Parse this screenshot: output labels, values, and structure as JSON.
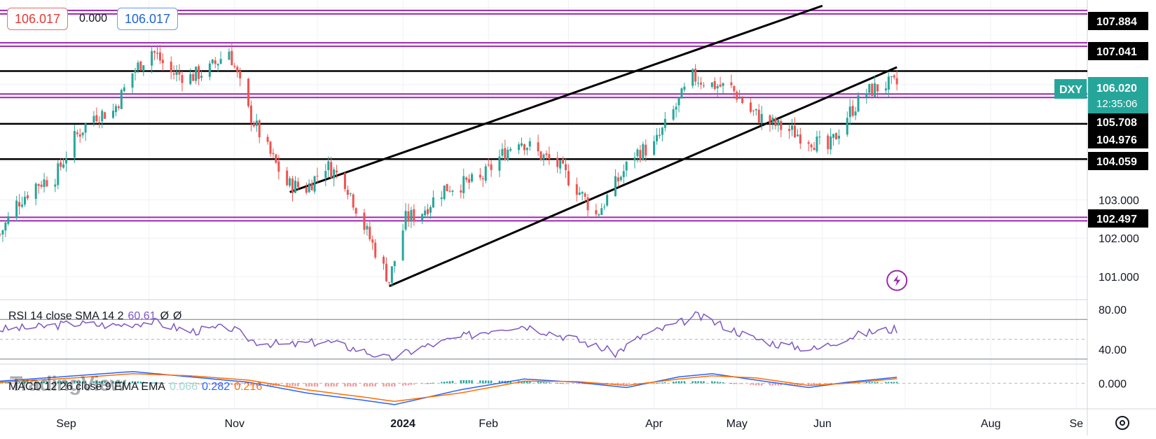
{
  "header": {
    "sell_price": "106.017",
    "spread": "0.000",
    "buy_price": "106.017"
  },
  "colors": {
    "up": "#26a69a",
    "down": "#ef5350",
    "sr_line": "#9c27b0",
    "trend_line": "#000000",
    "rsi_line": "#7e57c2",
    "macd_line": "#2962ff",
    "signal_line": "#ff6d00",
    "symbol_badge": "#26a69a"
  },
  "symbol_badge": {
    "symbol": "DXY",
    "price": "106.020",
    "countdown": "12:35:06"
  },
  "rsi": {
    "label": "RSI 14 close SMA 14 2",
    "value": "60.61",
    "extra1": "Ø",
    "extra2": "Ø",
    "axis_ticks": [
      "80.00",
      "40.00"
    ]
  },
  "macd": {
    "label": "MACD 12 26 close 9 EMA EMA",
    "histogram": "0.066",
    "macd_value": "0.282",
    "signal_value": "0.216",
    "axis_tick": "0.000"
  },
  "watermark": "TradingView",
  "time_axis": [
    "Sep",
    "Nov",
    "2024",
    "Feb",
    "Apr",
    "May",
    "Jun",
    "Aug",
    "Se"
  ],
  "price_axis": {
    "ticks": [
      "103.000",
      "102.000",
      "101.000"
    ],
    "level_labels": [
      "107.884",
      "107.041",
      "105.708",
      "104.976",
      "104.059",
      "102.497"
    ]
  },
  "chart_data": {
    "type": "candlestick",
    "instrument": "DXY",
    "timeframe": "daily",
    "x_range": [
      "2023-08-08",
      "2024-09-05"
    ],
    "ylim": [
      100.4,
      108.2
    ],
    "horizontal_levels": [
      {
        "price": 107.884,
        "style": "purple"
      },
      {
        "price": 107.041,
        "style": "purple"
      },
      {
        "price": 106.35,
        "style": "black"
      },
      {
        "price": 105.708,
        "style": "purple"
      },
      {
        "price": 104.976,
        "style": "black"
      },
      {
        "price": 104.059,
        "style": "black"
      },
      {
        "price": 102.497,
        "style": "purple"
      }
    ],
    "trend_lines": [
      {
        "from": [
          "2023-11-21",
          103.2
        ],
        "to": [
          "2024-06-01",
          108.05
        ]
      },
      {
        "from": [
          "2023-12-27",
          100.75
        ],
        "to": [
          "2024-06-28",
          106.45
        ]
      }
    ],
    "price_path": [
      [
        "2023-08-08",
        102.1
      ],
      [
        "2023-08-14",
        102.9
      ],
      [
        "2023-08-21",
        103.4
      ],
      [
        "2023-08-28",
        103.6
      ],
      [
        "2023-09-04",
        104.6
      ],
      [
        "2023-09-11",
        105.2
      ],
      [
        "2023-09-18",
        105.3
      ],
      [
        "2023-09-25",
        106.3
      ],
      [
        "2023-10-02",
        106.9
      ],
      [
        "2023-10-09",
        106.3
      ],
      [
        "2023-10-16",
        106.2
      ],
      [
        "2023-10-23",
        106.4
      ],
      [
        "2023-10-30",
        106.9
      ],
      [
        "2023-11-06",
        105.3
      ],
      [
        "2023-11-13",
        104.3
      ],
      [
        "2023-11-20",
        103.4
      ],
      [
        "2023-11-27",
        103.3
      ],
      [
        "2023-12-04",
        103.9
      ],
      [
        "2023-12-11",
        103.5
      ],
      [
        "2023-12-18",
        102.3
      ],
      [
        "2023-12-27",
        100.9
      ],
      [
        "2024-01-02",
        102.5
      ],
      [
        "2024-01-08",
        102.7
      ],
      [
        "2024-01-16",
        103.3
      ],
      [
        "2024-01-22",
        103.4
      ],
      [
        "2024-01-29",
        103.5
      ],
      [
        "2024-02-05",
        104.1
      ],
      [
        "2024-02-12",
        104.6
      ],
      [
        "2024-02-19",
        104.2
      ],
      [
        "2024-02-26",
        103.9
      ],
      [
        "2024-03-04",
        103.3
      ],
      [
        "2024-03-11",
        102.6
      ],
      [
        "2024-03-18",
        103.4
      ],
      [
        "2024-03-25",
        104.2
      ],
      [
        "2024-04-01",
        104.4
      ],
      [
        "2024-04-08",
        105.3
      ],
      [
        "2024-04-15",
        106.2
      ],
      [
        "2024-04-22",
        106.0
      ],
      [
        "2024-04-29",
        105.9
      ],
      [
        "2024-05-06",
        105.3
      ],
      [
        "2024-05-13",
        105.0
      ],
      [
        "2024-05-20",
        104.8
      ],
      [
        "2024-05-27",
        104.6
      ],
      [
        "2024-06-03",
        104.3
      ],
      [
        "2024-06-10",
        105.2
      ],
      [
        "2024-06-17",
        105.8
      ],
      [
        "2024-06-24",
        106.0
      ],
      [
        "2024-06-28",
        106.0
      ]
    ],
    "rsi_range": [
      25,
      90
    ],
    "rsi_band": [
      70,
      30
    ],
    "rsi_path": [
      [
        "2023-08-08",
        60
      ],
      [
        "2023-08-21",
        62
      ],
      [
        "2023-09-04",
        66
      ],
      [
        "2023-09-18",
        64
      ],
      [
        "2023-10-02",
        68
      ],
      [
        "2023-10-16",
        58
      ],
      [
        "2023-10-30",
        62
      ],
      [
        "2023-11-08",
        48
      ],
      [
        "2023-11-20",
        44
      ],
      [
        "2023-12-04",
        48
      ],
      [
        "2023-12-18",
        38
      ],
      [
        "2023-12-27",
        30
      ],
      [
        "2024-01-08",
        42
      ],
      [
        "2024-01-22",
        52
      ],
      [
        "2024-02-05",
        62
      ],
      [
        "2024-02-14",
        64
      ],
      [
        "2024-02-26",
        55
      ],
      [
        "2024-03-08",
        46
      ],
      [
        "2024-03-18",
        36
      ],
      [
        "2024-03-28",
        54
      ],
      [
        "2024-04-10",
        66
      ],
      [
        "2024-04-16",
        74
      ],
      [
        "2024-04-26",
        64
      ],
      [
        "2024-05-06",
        52
      ],
      [
        "2024-05-16",
        45
      ],
      [
        "2024-05-30",
        40
      ],
      [
        "2024-06-10",
        52
      ],
      [
        "2024-06-20",
        58
      ],
      [
        "2024-06-28",
        60.61
      ]
    ],
    "macd_range": [
      -1.2,
      0.9
    ],
    "macd_path": [
      [
        "2023-08-08",
        0.1
      ],
      [
        "2023-09-04",
        0.35
      ],
      [
        "2023-09-25",
        0.55
      ],
      [
        "2023-10-16",
        0.3
      ],
      [
        "2023-11-06",
        0.05
      ],
      [
        "2023-11-27",
        -0.45
      ],
      [
        "2023-12-18",
        -0.8
      ],
      [
        "2023-12-29",
        -1.0
      ],
      [
        "2024-01-22",
        -0.3
      ],
      [
        "2024-02-14",
        0.2
      ],
      [
        "2024-03-04",
        0.05
      ],
      [
        "2024-03-22",
        -0.2
      ],
      [
        "2024-04-10",
        0.3
      ],
      [
        "2024-04-22",
        0.45
      ],
      [
        "2024-05-08",
        0.15
      ],
      [
        "2024-05-27",
        -0.2
      ],
      [
        "2024-06-10",
        0.05
      ],
      [
        "2024-06-28",
        0.282
      ]
    ],
    "signal_path": [
      [
        "2023-08-08",
        0.05
      ],
      [
        "2023-09-04",
        0.25
      ],
      [
        "2023-09-25",
        0.45
      ],
      [
        "2023-10-16",
        0.35
      ],
      [
        "2023-11-06",
        0.15
      ],
      [
        "2023-11-27",
        -0.3
      ],
      [
        "2023-12-18",
        -0.65
      ],
      [
        "2023-12-29",
        -0.85
      ],
      [
        "2024-01-22",
        -0.45
      ],
      [
        "2024-02-14",
        0.1
      ],
      [
        "2024-03-04",
        0.08
      ],
      [
        "2024-03-22",
        -0.1
      ],
      [
        "2024-04-10",
        0.2
      ],
      [
        "2024-04-22",
        0.35
      ],
      [
        "2024-05-08",
        0.25
      ],
      [
        "2024-05-27",
        -0.1
      ],
      [
        "2024-06-10",
        0.0
      ],
      [
        "2024-06-28",
        0.216
      ]
    ]
  }
}
